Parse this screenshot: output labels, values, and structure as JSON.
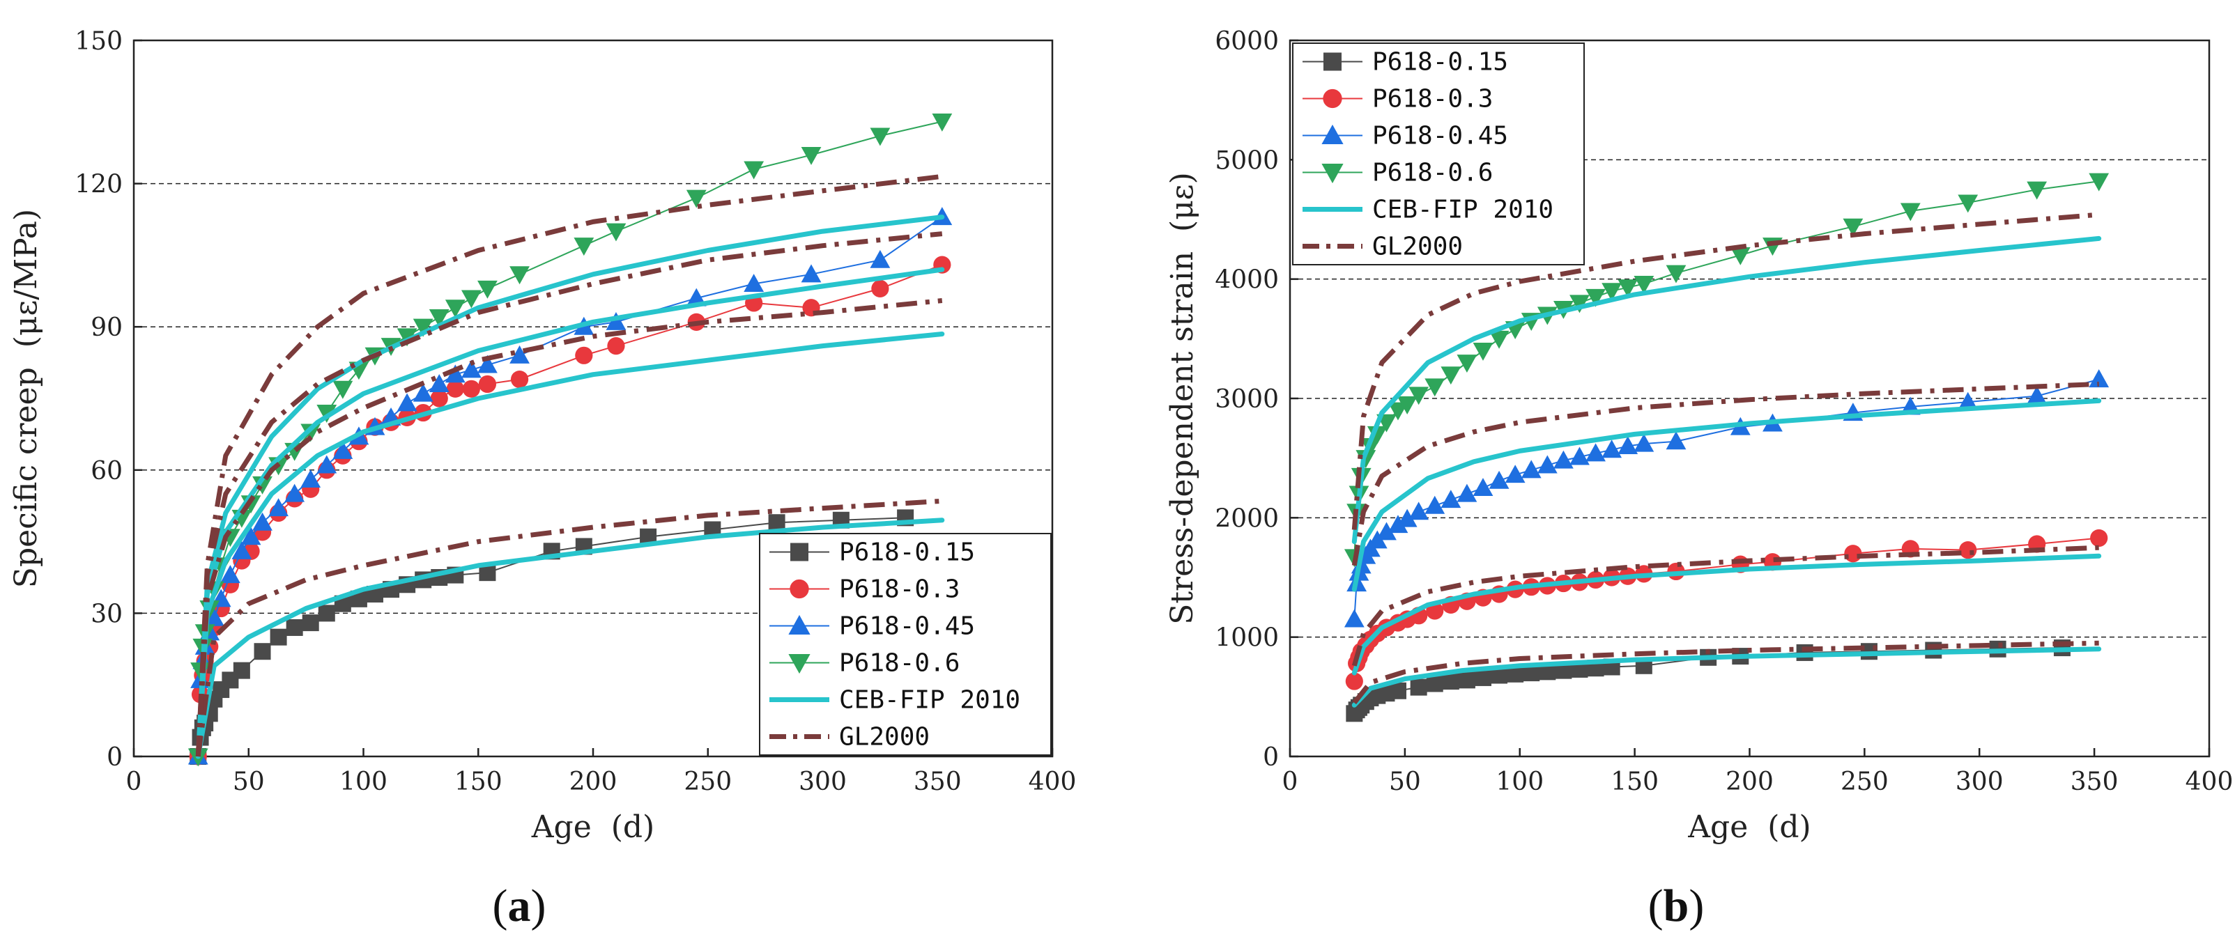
{
  "series_styles": {
    "P618-0.15": {
      "color": "#4a4a4a",
      "marker": "square"
    },
    "P618-0.3": {
      "color": "#e8383d",
      "marker": "circle"
    },
    "P618-0.45": {
      "color": "#1e6fe0",
      "marker": "triangle-up"
    },
    "P618-0.6": {
      "color": "#2ea55a",
      "marker": "triangle-down"
    },
    "CEB-FIP 2010": {
      "color": "#27c4cc",
      "line": "solid"
    },
    "GL2000": {
      "color": "#7a3b3b",
      "line": "dash-dot"
    }
  },
  "chart_data": [
    {
      "type": "line",
      "panel_label": "a",
      "title": "",
      "xlabel": "Age  (d)",
      "ylabel": "Specific creep  (με/MPa)",
      "xlim": [
        0,
        400
      ],
      "ylim": [
        0,
        150
      ],
      "xticks": [
        "0",
        "50",
        "100",
        "150",
        "200",
        "250",
        "300",
        "350",
        "400"
      ],
      "yticks": [
        "0",
        "30",
        "60",
        "90",
        "120",
        "150"
      ],
      "grid": "horizontal dashed",
      "legend_position": "lower-right",
      "legend": [
        "P618-0.15",
        "P618-0.3",
        "P618-0.45",
        "P618-0.6",
        "CEB-FIP 2010",
        "GL2000"
      ],
      "series": [
        {
          "name": "P618-0.15",
          "x": [
            28,
            29,
            30,
            31,
            33,
            35,
            38,
            42,
            47,
            56,
            63,
            70,
            77,
            84,
            91,
            98,
            105,
            112,
            119,
            126,
            133,
            140,
            154,
            182,
            196,
            224,
            252,
            280,
            308,
            336
          ],
          "y": [
            0,
            4,
            6,
            7,
            9,
            12,
            14,
            16,
            18,
            22,
            25,
            27,
            28,
            30,
            32,
            33,
            34,
            35,
            36,
            37,
            37.5,
            38,
            38.5,
            43,
            44,
            46,
            47.5,
            49,
            49.5,
            50
          ]
        },
        {
          "name": "P618-0.3",
          "x": [
            28,
            29,
            30,
            31,
            33,
            35,
            38,
            42,
            47,
            51,
            56,
            63,
            70,
            77,
            84,
            91,
            98,
            105,
            112,
            119,
            126,
            133,
            140,
            147,
            154,
            168,
            196,
            210,
            245,
            270,
            295,
            325,
            352
          ],
          "y": [
            0,
            13,
            17,
            20,
            23,
            27,
            31,
            36,
            41,
            43,
            47,
            51,
            54,
            56,
            60,
            63,
            66,
            69,
            70,
            71,
            72,
            75,
            77,
            77,
            78,
            79,
            84,
            86,
            91,
            95,
            94,
            98,
            103
          ]
        },
        {
          "name": "P618-0.45",
          "x": [
            28,
            29,
            30,
            31,
            33,
            35,
            38,
            42,
            47,
            51,
            56,
            63,
            70,
            77,
            84,
            91,
            98,
            105,
            112,
            119,
            126,
            133,
            140,
            147,
            154,
            168,
            196,
            210,
            245,
            270,
            295,
            325,
            352
          ],
          "y": [
            0,
            16,
            20,
            23,
            26,
            29,
            33,
            38,
            43,
            46,
            49,
            52,
            55,
            58,
            61,
            64,
            67,
            69,
            71,
            74,
            76,
            78,
            80,
            81,
            82,
            84,
            90,
            91,
            96,
            99,
            101,
            104,
            113
          ]
        },
        {
          "name": "P618-0.6",
          "x": [
            28,
            29,
            30,
            31,
            33,
            35,
            38,
            42,
            47,
            51,
            56,
            63,
            70,
            77,
            84,
            91,
            98,
            105,
            112,
            119,
            126,
            133,
            140,
            147,
            154,
            168,
            196,
            210,
            245,
            270,
            295,
            325,
            352
          ],
          "y": [
            0,
            18,
            23,
            26,
            31,
            35,
            40,
            46,
            50,
            53,
            57,
            61,
            64,
            68,
            72,
            77,
            81,
            84,
            86,
            88,
            90,
            92,
            94,
            96,
            98,
            101,
            107,
            110,
            117,
            123,
            126,
            130,
            133
          ]
        },
        {
          "name": "CEB-FIP 2010 (0.15)",
          "legend_ref": "CEB-FIP 2010",
          "x": [
            28,
            35,
            50,
            75,
            100,
            150,
            200,
            250,
            300,
            352
          ],
          "y": [
            0,
            19,
            25,
            31,
            35,
            40,
            43,
            46,
            48,
            49.5
          ]
        },
        {
          "name": "CEB-FIP 2010 (0.3)",
          "legend_ref": "CEB-FIP 2010",
          "x": [
            28,
            32,
            40,
            60,
            80,
            100,
            150,
            200,
            250,
            300,
            352
          ],
          "y": [
            0,
            30,
            41,
            55,
            63,
            68,
            75,
            80,
            83,
            86,
            88.5
          ]
        },
        {
          "name": "CEB-FIP 2010 (0.45)",
          "legend_ref": "CEB-FIP 2010",
          "x": [
            28,
            32,
            40,
            60,
            80,
            100,
            150,
            200,
            250,
            300,
            352
          ],
          "y": [
            0,
            34,
            47,
            61,
            70,
            76,
            85,
            91,
            95,
            98.5,
            102
          ]
        },
        {
          "name": "CEB-FIP 2010 (0.6)",
          "legend_ref": "CEB-FIP 2010",
          "x": [
            28,
            32,
            40,
            60,
            80,
            100,
            150,
            200,
            250,
            300,
            352
          ],
          "y": [
            0,
            36,
            51,
            67,
            77,
            83,
            94,
            101,
            106,
            110,
            113
          ]
        },
        {
          "name": "GL2000 (0.15)",
          "legend_ref": "GL2000",
          "x": [
            28,
            35,
            50,
            75,
            100,
            150,
            200,
            250,
            300,
            352
          ],
          "y": [
            0,
            25,
            32,
            37,
            40,
            45,
            48,
            50.5,
            52,
            53.5
          ]
        },
        {
          "name": "GL2000 (0.3)",
          "legend_ref": "GL2000",
          "x": [
            28,
            32,
            40,
            60,
            80,
            100,
            150,
            200,
            250,
            300,
            352
          ],
          "y": [
            0,
            33,
            46,
            60,
            68,
            73,
            83,
            88,
            91,
            93,
            95.5
          ]
        },
        {
          "name": "GL2000 (0.45)",
          "legend_ref": "GL2000",
          "x": [
            28,
            32,
            40,
            60,
            80,
            100,
            150,
            200,
            250,
            300,
            352
          ],
          "y": [
            0,
            38,
            55,
            70,
            78,
            83,
            93,
            99,
            104,
            107,
            109.5
          ]
        },
        {
          "name": "GL2000 (0.6)",
          "legend_ref": "GL2000",
          "x": [
            28,
            32,
            40,
            60,
            80,
            100,
            150,
            200,
            250,
            300,
            352
          ],
          "y": [
            0,
            40,
            63,
            80,
            90,
            97,
            106,
            112,
            115.5,
            118.5,
            121.5
          ]
        }
      ]
    },
    {
      "type": "line",
      "panel_label": "b",
      "title": "",
      "xlabel": "Age  (d)",
      "ylabel": "Stress-dependent strain  (με)",
      "xlim": [
        0,
        400
      ],
      "ylim": [
        0,
        6000
      ],
      "xticks": [
        "0",
        "50",
        "100",
        "150",
        "200",
        "250",
        "300",
        "350",
        "400"
      ],
      "yticks": [
        "0",
        "1000",
        "2000",
        "3000",
        "4000",
        "5000",
        "6000"
      ],
      "grid": "horizontal dashed",
      "legend_position": "upper-left",
      "legend": [
        "P618-0.15",
        "P618-0.3",
        "P618-0.45",
        "P618-0.6",
        "CEB-FIP 2010",
        "GL2000"
      ],
      "series": [
        {
          "name": "P618-0.15",
          "x": [
            28,
            29,
            30,
            31,
            33,
            35,
            38,
            42,
            47,
            56,
            63,
            70,
            77,
            84,
            91,
            98,
            105,
            112,
            119,
            126,
            133,
            140,
            154,
            182,
            196,
            224,
            252,
            280,
            308,
            336
          ],
          "y": [
            360,
            390,
            410,
            430,
            460,
            490,
            510,
            530,
            550,
            580,
            610,
            630,
            640,
            660,
            680,
            690,
            700,
            710,
            720,
            730,
            740,
            750,
            760,
            830,
            840,
            870,
            880,
            890,
            900,
            910
          ]
        },
        {
          "name": "P618-0.3",
          "x": [
            28,
            29,
            30,
            31,
            33,
            35,
            38,
            42,
            47,
            51,
            56,
            63,
            70,
            77,
            84,
            91,
            98,
            105,
            112,
            119,
            126,
            133,
            140,
            147,
            154,
            168,
            196,
            210,
            245,
            270,
            295,
            325,
            352
          ],
          "y": [
            630,
            780,
            830,
            880,
            930,
            980,
            1030,
            1080,
            1120,
            1150,
            1180,
            1220,
            1270,
            1300,
            1330,
            1360,
            1400,
            1420,
            1430,
            1450,
            1460,
            1480,
            1500,
            1510,
            1530,
            1550,
            1610,
            1630,
            1700,
            1740,
            1730,
            1780,
            1830
          ]
        },
        {
          "name": "P618-0.45",
          "x": [
            28,
            29,
            30,
            31,
            33,
            35,
            38,
            42,
            47,
            51,
            56,
            63,
            70,
            77,
            84,
            91,
            98,
            105,
            112,
            119,
            126,
            133,
            140,
            147,
            154,
            168,
            196,
            210,
            245,
            270,
            295,
            325,
            352
          ],
          "y": [
            1150,
            1450,
            1540,
            1600,
            1680,
            1740,
            1810,
            1880,
            1940,
            1990,
            2050,
            2100,
            2150,
            2200,
            2250,
            2310,
            2360,
            2400,
            2440,
            2480,
            2510,
            2540,
            2570,
            2600,
            2620,
            2640,
            2760,
            2790,
            2880,
            2930,
            2970,
            3020,
            3160
          ]
        },
        {
          "name": "P618-0.6",
          "x": [
            28,
            29,
            30,
            31,
            33,
            35,
            38,
            42,
            47,
            51,
            56,
            63,
            70,
            77,
            84,
            91,
            98,
            105,
            112,
            119,
            126,
            133,
            140,
            147,
            154,
            168,
            196,
            210,
            245,
            270,
            295,
            325,
            352
          ],
          "y": [
            1670,
            2050,
            2200,
            2350,
            2500,
            2600,
            2700,
            2800,
            2900,
            2950,
            3030,
            3100,
            3200,
            3300,
            3400,
            3500,
            3580,
            3650,
            3700,
            3750,
            3800,
            3850,
            3900,
            3930,
            3960,
            4050,
            4200,
            4280,
            4440,
            4570,
            4640,
            4750,
            4820
          ]
        },
        {
          "name": "CEB-FIP 2010 (0.15)",
          "legend_ref": "CEB-FIP 2010",
          "x": [
            28,
            35,
            50,
            75,
            100,
            150,
            200,
            250,
            300,
            352
          ],
          "y": [
            430,
            570,
            650,
            720,
            760,
            810,
            840,
            860,
            880,
            900
          ]
        },
        {
          "name": "CEB-FIP 2010 (0.3)",
          "legend_ref": "CEB-FIP 2010",
          "x": [
            28,
            32,
            40,
            60,
            80,
            100,
            150,
            200,
            250,
            300,
            352
          ],
          "y": [
            700,
            920,
            1080,
            1270,
            1360,
            1420,
            1510,
            1570,
            1610,
            1640,
            1680
          ]
        },
        {
          "name": "CEB-FIP 2010 (0.45)",
          "legend_ref": "CEB-FIP 2010",
          "x": [
            28,
            32,
            40,
            60,
            80,
            100,
            150,
            200,
            250,
            300,
            352
          ],
          "y": [
            1400,
            1800,
            2050,
            2330,
            2470,
            2560,
            2700,
            2790,
            2860,
            2920,
            2980
          ]
        },
        {
          "name": "CEB-FIP 2010 (0.6)",
          "legend_ref": "CEB-FIP 2010",
          "x": [
            28,
            32,
            40,
            60,
            80,
            100,
            150,
            200,
            250,
            300,
            352
          ],
          "y": [
            1800,
            2500,
            2880,
            3300,
            3500,
            3650,
            3870,
            4020,
            4140,
            4240,
            4340
          ]
        },
        {
          "name": "GL2000 (0.15)",
          "legend_ref": "GL2000",
          "x": [
            28,
            35,
            50,
            75,
            100,
            150,
            200,
            250,
            300,
            352
          ],
          "y": [
            450,
            620,
            710,
            780,
            820,
            860,
            890,
            910,
            930,
            950
          ]
        },
        {
          "name": "GL2000 (0.3)",
          "legend_ref": "GL2000",
          "x": [
            28,
            32,
            40,
            60,
            80,
            100,
            150,
            200,
            250,
            300,
            352
          ],
          "y": [
            760,
            1030,
            1220,
            1380,
            1460,
            1510,
            1590,
            1640,
            1680,
            1710,
            1750
          ]
        },
        {
          "name": "GL2000 (0.45)",
          "legend_ref": "GL2000",
          "x": [
            28,
            32,
            40,
            60,
            80,
            100,
            150,
            200,
            250,
            300,
            352
          ],
          "y": [
            1600,
            2050,
            2350,
            2600,
            2720,
            2800,
            2920,
            2990,
            3040,
            3080,
            3120
          ]
        },
        {
          "name": "GL2000 (0.6)",
          "legend_ref": "GL2000",
          "x": [
            28,
            32,
            40,
            60,
            80,
            100,
            150,
            200,
            250,
            300,
            352
          ],
          "y": [
            1900,
            2850,
            3300,
            3700,
            3880,
            3980,
            4150,
            4280,
            4380,
            4460,
            4540
          ]
        }
      ]
    }
  ]
}
